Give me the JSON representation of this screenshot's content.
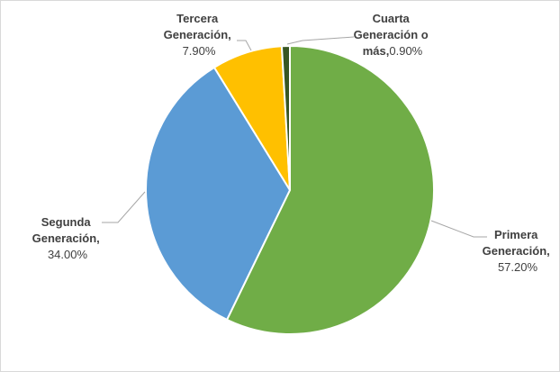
{
  "chart_data": {
    "type": "pie",
    "categories": [
      "Primera Generación",
      "Segunda Generación",
      "Tercera Generación",
      "Cuarta Generación o más"
    ],
    "values": [
      57.2,
      34.0,
      7.9,
      0.9
    ],
    "value_labels": [
      "57.20%",
      "34.00%",
      "7.90%",
      "0.90%"
    ],
    "colors": [
      "#70ad47",
      "#5b9bd5",
      "#ffc000",
      "#375623"
    ],
    "start_angle_deg": 0,
    "direction": "clockwise",
    "legend": "none",
    "labels": [
      {
        "lines": [
          "Primera",
          "Generación,"
        ],
        "value": "57.20%"
      },
      {
        "lines": [
          "Segunda",
          "Generación,"
        ],
        "value": "34.00%"
      },
      {
        "lines": [
          "Tercera",
          "Generación,"
        ],
        "value": "7.90%"
      },
      {
        "lines": [
          "Cuarta",
          "Generación o",
          "más,"
        ],
        "value": "0.90%"
      }
    ]
  }
}
